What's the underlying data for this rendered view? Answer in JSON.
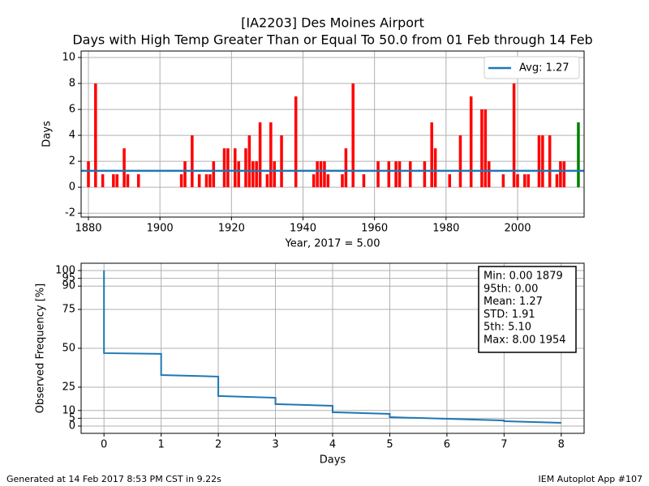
{
  "chart_data": [
    {
      "type": "bar",
      "title": "[IA2203] Des Moines Airport",
      "subtitle": "Days with High Temp Greater Than or Equal To 50.0 from 01 Feb through 14 Feb",
      "x_label": "Year, 2017 = 5.00",
      "y_label": "Days",
      "x": [
        1879,
        1880,
        1881,
        1882,
        1883,
        1884,
        1885,
        1886,
        1887,
        1888,
        1889,
        1890,
        1891,
        1892,
        1893,
        1894,
        1895,
        1896,
        1897,
        1898,
        1899,
        1900,
        1901,
        1902,
        1903,
        1904,
        1905,
        1906,
        1907,
        1908,
        1909,
        1910,
        1911,
        1912,
        1913,
        1914,
        1915,
        1916,
        1917,
        1918,
        1919,
        1920,
        1921,
        1922,
        1923,
        1924,
        1925,
        1926,
        1927,
        1928,
        1929,
        1930,
        1931,
        1932,
        1933,
        1934,
        1935,
        1936,
        1937,
        1938,
        1939,
        1940,
        1941,
        1942,
        1943,
        1944,
        1945,
        1946,
        1947,
        1948,
        1949,
        1950,
        1951,
        1952,
        1953,
        1954,
        1955,
        1956,
        1957,
        1958,
        1959,
        1960,
        1961,
        1962,
        1963,
        1964,
        1965,
        1966,
        1967,
        1968,
        1969,
        1970,
        1971,
        1972,
        1973,
        1974,
        1975,
        1976,
        1977,
        1978,
        1979,
        1980,
        1981,
        1982,
        1983,
        1984,
        1985,
        1986,
        1987,
        1988,
        1989,
        1990,
        1991,
        1992,
        1993,
        1994,
        1995,
        1996,
        1997,
        1998,
        1999,
        2000,
        2001,
        2002,
        2003,
        2004,
        2005,
        2006,
        2007,
        2008,
        2009,
        2010,
        2011,
        2012,
        2013,
        2014,
        2015,
        2016,
        2017
      ],
      "values": [
        0,
        2,
        0,
        8,
        0,
        1,
        0,
        0,
        1,
        1,
        0,
        3,
        1,
        0,
        0,
        1,
        0,
        0,
        0,
        0,
        0,
        0,
        0,
        0,
        0,
        0,
        0,
        1,
        2,
        0,
        4,
        0,
        1,
        0,
        1,
        1,
        2,
        0,
        0,
        3,
        3,
        0,
        3,
        2,
        0,
        3,
        4,
        2,
        2,
        5,
        0,
        1,
        5,
        2,
        0,
        4,
        0,
        0,
        0,
        7,
        0,
        0,
        0,
        0,
        1,
        2,
        2,
        2,
        1,
        0,
        0,
        0,
        1,
        3,
        0,
        8,
        0,
        0,
        1,
        0,
        0,
        0,
        2,
        0,
        0,
        2,
        0,
        2,
        2,
        0,
        0,
        2,
        0,
        0,
        0,
        2,
        0,
        5,
        3,
        0,
        0,
        0,
        1,
        0,
        0,
        4,
        0,
        0,
        7,
        0,
        0,
        6,
        6,
        2,
        0,
        0,
        0,
        1,
        0,
        0,
        8,
        1,
        0,
        1,
        1,
        0,
        0,
        4,
        4,
        0,
        4,
        0,
        1,
        2,
        2,
        0,
        0,
        0,
        5
      ],
      "color": "#ff0000",
      "highlight": {
        "x": 2017,
        "color": "#008000"
      },
      "avg_value": 1.27,
      "avg_label": "Avg: 1.27",
      "avg_color": "#1f77b4",
      "legend": "upper right",
      "xlim": [
        1877.96,
        2018.6
      ],
      "xticks": [
        1880,
        1900,
        1920,
        1940,
        1960,
        1980,
        2000
      ],
      "ylim": [
        -2.3,
        10.5
      ],
      "yticks": [
        -2,
        0,
        2,
        4,
        6,
        8,
        10
      ],
      "grid": true
    },
    {
      "type": "line",
      "x_label": "Days",
      "y_label": "Observed Frequency [%]",
      "x": [
        0,
        0,
        1,
        1,
        2,
        2,
        3,
        3,
        4,
        4,
        5,
        5,
        6,
        7,
        7,
        8
      ],
      "values": [
        100,
        46.9,
        46.4,
        32.8,
        31.8,
        19.3,
        18.2,
        14.1,
        13,
        8.9,
        7.8,
        5.7,
        4.7,
        3.6,
        3.1,
        2.1
      ],
      "color": "#1f77b4",
      "stats_box": [
        "Min: 0.00 1879",
        "95th: 0.00",
        "Mean: 1.27",
        "STD: 1.91",
        "5th: 5.10",
        "Max: 8.00 1954"
      ],
      "xlim": [
        -0.4,
        8.4
      ],
      "xticks": [
        0,
        1,
        2,
        3,
        4,
        5,
        6,
        7,
        8
      ],
      "ylim": [
        -4.7,
        104.7
      ],
      "yticks": [
        0,
        5,
        10,
        25,
        50,
        75,
        90,
        95,
        100
      ],
      "grid": true
    }
  ],
  "footer": {
    "left": "Generated at 14 Feb 2017 8:53 PM CST in 9.22s",
    "right": "IEM Autoplot App #107"
  }
}
